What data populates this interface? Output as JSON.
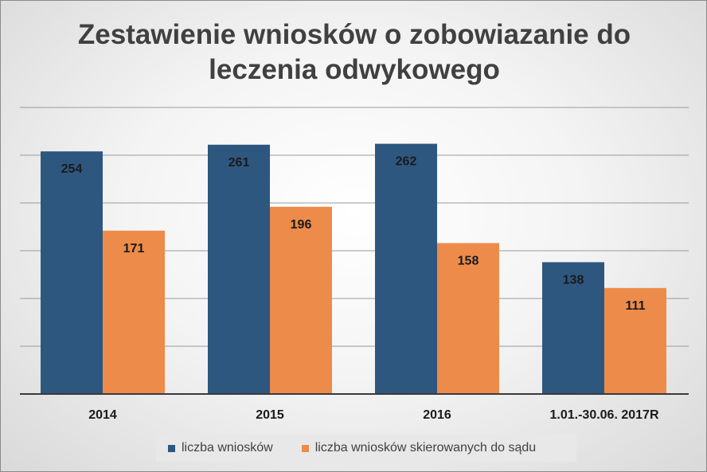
{
  "chart_data": {
    "type": "bar",
    "title_lines": [
      "Zestawienie wniosków o zobowiazanie do",
      "leczenia odwykowego"
    ],
    "categories": [
      "2014",
      "2015",
      "2016",
      "1.01.-30.06. 2017R"
    ],
    "series": [
      {
        "name": "liczba wniosków",
        "values": [
          254,
          261,
          262,
          138
        ],
        "color": "#2e5780"
      },
      {
        "name": "liczba wniosków skierowanych do sądu",
        "values": [
          171,
          196,
          158,
          111
        ],
        "color": "#ed8b4a"
      }
    ],
    "xlabel": "",
    "ylabel": "",
    "ylim": [
      0,
      300
    ],
    "gridlines": [
      50,
      100,
      150,
      200,
      250,
      300
    ],
    "legend_position": "bottom"
  }
}
